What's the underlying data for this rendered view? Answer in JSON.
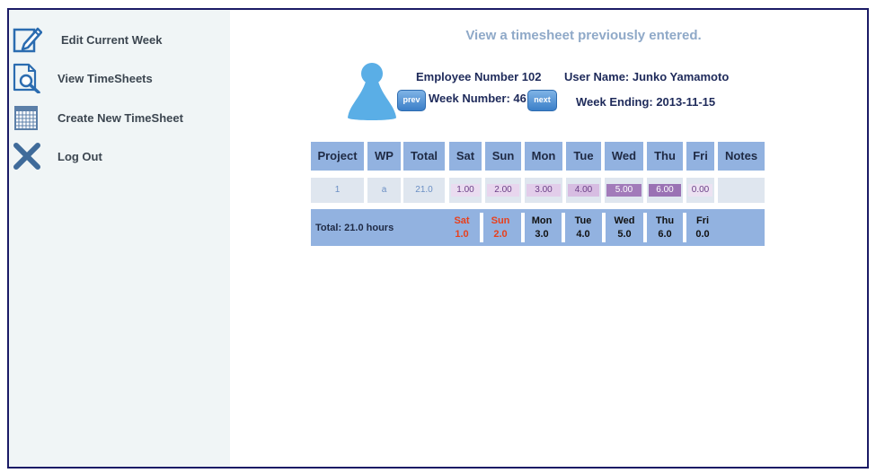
{
  "sidebar": {
    "items": [
      {
        "label": "Edit Current Week",
        "icon": "edit-icon"
      },
      {
        "label": "View TimeSheets",
        "icon": "search-document-icon"
      },
      {
        "label": "Create New TimeSheet",
        "icon": "calendar-icon"
      },
      {
        "label": "Log Out",
        "icon": "close-icon"
      }
    ]
  },
  "main": {
    "title": "View a timesheet previously entered.",
    "employee_number": "Employee Number 102",
    "user_name": "User Name: Junko Yamamoto",
    "week_number": "Week Number: 46",
    "week_ending": "Week Ending: 2013-11-15",
    "prev_label": "prev",
    "next_label": "next"
  },
  "table": {
    "headers": [
      "Project",
      "WP",
      "Total",
      "Sat",
      "Sun",
      "Mon",
      "Tue",
      "Wed",
      "Thu",
      "Fri",
      "Notes"
    ],
    "row": {
      "project": "1",
      "wp": "a",
      "total": "21.0",
      "days": [
        "1.00",
        "2.00",
        "3.00",
        "4.00",
        "5.00",
        "6.00",
        "0.00"
      ],
      "notes": ""
    }
  },
  "totals": {
    "label": "Total: 21.0 hours",
    "days": [
      {
        "day": "Sat",
        "value": "1.0"
      },
      {
        "day": "Sun",
        "value": "2.0"
      },
      {
        "day": "Mon",
        "value": "3.0"
      },
      {
        "day": "Tue",
        "value": "4.0"
      },
      {
        "day": "Wed",
        "value": "5.0"
      },
      {
        "day": "Thu",
        "value": "6.0"
      },
      {
        "day": "Fri",
        "value": "0.0"
      }
    ]
  },
  "colors": {
    "weekend_total": "#e8401c",
    "header_bg": "#92b2e0",
    "accent_blue": "#2b6cb0",
    "frame_border": "#1b1b66"
  }
}
